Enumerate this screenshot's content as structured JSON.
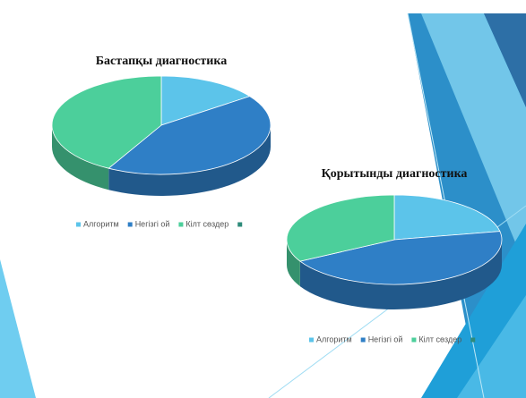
{
  "chart_data": [
    {
      "type": "pie3d",
      "title": "Бастапқы диагностика",
      "categories": [
        "Алгоритм",
        "Негізгі ой",
        "Кілт сөздер",
        null
      ],
      "values": [
        15,
        43,
        42,
        0
      ],
      "colors": [
        "#5cc4ea",
        "#2f7fc6",
        "#4ccf9b",
        "#2e8b7a"
      ]
    },
    {
      "type": "pie3d",
      "title": "Қорытынды диагностика",
      "categories": [
        "Алгоритм",
        "Негізгі ой",
        "Кілт сөздер",
        null
      ],
      "values": [
        22,
        45,
        33,
        0
      ],
      "colors": [
        "#5cc4ea",
        "#2f7fc6",
        "#4ccf9b",
        "#2e8b7a"
      ]
    }
  ]
}
